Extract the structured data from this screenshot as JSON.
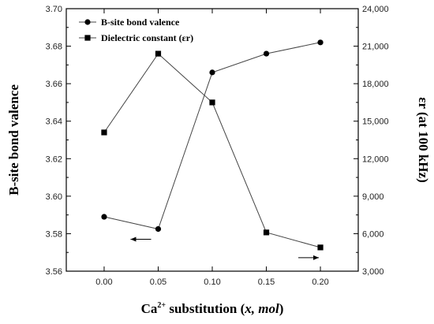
{
  "chart_data": {
    "type": "line",
    "x_ticks": [
      "0.00",
      "0.05",
      "0.10",
      "0.15",
      "0.20"
    ],
    "xlim": [
      -0.035,
      0.235
    ],
    "xlabel_base": "Ca",
    "xlabel_sup": "2+",
    "xlabel_rest": " substitution (",
    "xlabel_var": "x, mol",
    "xlabel_close": ")",
    "ylabel_left": "B-site bond valence",
    "ylabel_right": "εr (at 100 kHz)",
    "ylim_left": [
      3.56,
      3.7
    ],
    "ylim_right": [
      3000,
      24000
    ],
    "yticks_left": [
      "3.56",
      "3.58",
      "3.60",
      "3.62",
      "3.64",
      "3.66",
      "3.68",
      "3.70"
    ],
    "yticks_right": [
      "3,000",
      "6,000",
      "9,000",
      "12,000",
      "15,000",
      "18,000",
      "21,000",
      "24,000"
    ],
    "grid": false,
    "legend_position": "top-left",
    "series": [
      {
        "name": "B-site bond valence",
        "axis": "left",
        "marker": "circle",
        "x": [
          0.0,
          0.05,
          0.1,
          0.15,
          0.2
        ],
        "values": [
          3.589,
          3.5825,
          3.666,
          3.676,
          3.682
        ]
      },
      {
        "name": "Dielectric constant (εr)",
        "axis": "right",
        "marker": "square",
        "x": [
          0.0,
          0.05,
          0.1,
          0.15,
          0.2
        ],
        "values": [
          14100,
          20400,
          16500,
          6100,
          4900
        ]
      }
    ],
    "annotations": [
      {
        "type": "arrow",
        "direction": "left",
        "series": "B-site bond valence",
        "at_x": 0.05,
        "at_y": 3.5825
      },
      {
        "type": "arrow",
        "direction": "right",
        "series": "Dielectric constant (εr)",
        "at_x": 0.2,
        "at_y": 4900
      }
    ],
    "colors": {
      "line": "#444444",
      "marker": "#000000",
      "axis": "#000000"
    }
  }
}
